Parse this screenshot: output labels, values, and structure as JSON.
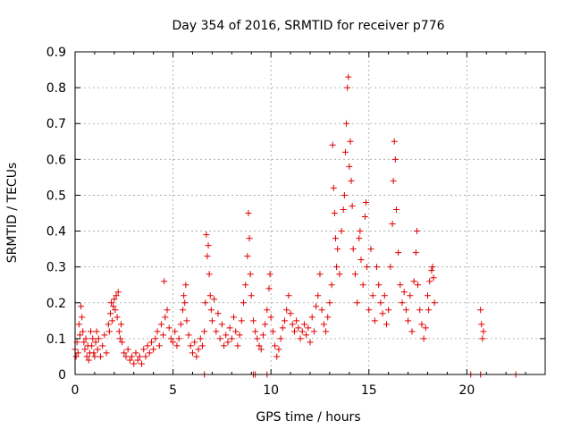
{
  "chart_data": {
    "type": "scatter",
    "title": "Day 354 of 2016, SRMTID for receiver p776",
    "xlabel": "GPS time / hours",
    "ylabel": "SRMTID / TECUs",
    "xlim": [
      0,
      24
    ],
    "ylim": [
      0,
      0.9
    ],
    "xticks": [
      0,
      5,
      10,
      15,
      20
    ],
    "yticks": [
      0,
      0.1,
      0.2,
      0.3,
      0.4,
      0.5,
      0.6,
      0.7,
      0.8,
      0.9
    ],
    "ytick_labels": [
      "0",
      "0.1",
      "0.2",
      "0.3",
      "0.4",
      "0.5",
      "0.6",
      "0.7",
      "0.8",
      "0.9"
    ],
    "grid": true,
    "marker": "+",
    "color": "#e00000",
    "series": [
      {
        "name": "p776",
        "points": [
          [
            0.0,
            0.07
          ],
          [
            0.05,
            0.05
          ],
          [
            0.1,
            0.09
          ],
          [
            0.15,
            0.06
          ],
          [
            0.2,
            0.14
          ],
          [
            0.25,
            0.11
          ],
          [
            0.3,
            0.19
          ],
          [
            0.35,
            0.16
          ],
          [
            0.4,
            0.12
          ],
          [
            0.45,
            0.09
          ],
          [
            0.5,
            0.07
          ],
          [
            0.55,
            0.1
          ],
          [
            0.6,
            0.05
          ],
          [
            0.65,
            0.08
          ],
          [
            0.7,
            0.04
          ],
          [
            0.75,
            0.06
          ],
          [
            0.8,
            0.12
          ],
          [
            0.85,
            0.08
          ],
          [
            0.9,
            0.1
          ],
          [
            0.95,
            0.06
          ],
          [
            1.0,
            0.05
          ],
          [
            1.05,
            0.09
          ],
          [
            1.1,
            0.12
          ],
          [
            1.15,
            0.07
          ],
          [
            1.2,
            0.1
          ],
          [
            1.3,
            0.05
          ],
          [
            1.4,
            0.08
          ],
          [
            1.5,
            0.11
          ],
          [
            1.6,
            0.06
          ],
          [
            1.7,
            0.14
          ],
          [
            1.75,
            0.12
          ],
          [
            1.8,
            0.17
          ],
          [
            1.85,
            0.2
          ],
          [
            1.9,
            0.15
          ],
          [
            1.95,
            0.19
          ],
          [
            2.0,
            0.21
          ],
          [
            2.05,
            0.18
          ],
          [
            2.1,
            0.22
          ],
          [
            2.15,
            0.16
          ],
          [
            2.2,
            0.23
          ],
          [
            2.25,
            0.12
          ],
          [
            2.3,
            0.1
          ],
          [
            2.35,
            0.14
          ],
          [
            2.4,
            0.09
          ],
          [
            2.5,
            0.06
          ],
          [
            2.6,
            0.05
          ],
          [
            2.7,
            0.07
          ],
          [
            2.8,
            0.04
          ],
          [
            2.9,
            0.05
          ],
          [
            3.0,
            0.03
          ],
          [
            3.1,
            0.06
          ],
          [
            3.2,
            0.04
          ],
          [
            3.3,
            0.05
          ],
          [
            3.4,
            0.03
          ],
          [
            3.5,
            0.07
          ],
          [
            3.6,
            0.05
          ],
          [
            3.7,
            0.08
          ],
          [
            3.8,
            0.06
          ],
          [
            3.9,
            0.09
          ],
          [
            4.0,
            0.07
          ],
          [
            4.1,
            0.1
          ],
          [
            4.2,
            0.12
          ],
          [
            4.3,
            0.08
          ],
          [
            4.4,
            0.14
          ],
          [
            4.5,
            0.11
          ],
          [
            4.55,
            0.26
          ],
          [
            4.6,
            0.16
          ],
          [
            4.7,
            0.18
          ],
          [
            4.8,
            0.13
          ],
          [
            4.9,
            0.1
          ],
          [
            5.0,
            0.09
          ],
          [
            5.1,
            0.12
          ],
          [
            5.2,
            0.08
          ],
          [
            5.3,
            0.1
          ],
          [
            5.4,
            0.14
          ],
          [
            5.5,
            0.18
          ],
          [
            5.55,
            0.22
          ],
          [
            5.6,
            0.2
          ],
          [
            5.65,
            0.25
          ],
          [
            5.7,
            0.15
          ],
          [
            5.8,
            0.11
          ],
          [
            5.9,
            0.08
          ],
          [
            6.0,
            0.06
          ],
          [
            6.1,
            0.09
          ],
          [
            6.2,
            0.05
          ],
          [
            6.3,
            0.07
          ],
          [
            6.4,
            0.1
          ],
          [
            6.5,
            0.08
          ],
          [
            6.6,
            0.12
          ],
          [
            6.65,
            0.2
          ],
          [
            6.7,
            0.39
          ],
          [
            6.75,
            0.33
          ],
          [
            6.8,
            0.36
          ],
          [
            6.85,
            0.28
          ],
          [
            6.9,
            0.22
          ],
          [
            6.95,
            0.18
          ],
          [
            7.0,
            0.15
          ],
          [
            7.1,
            0.21
          ],
          [
            7.2,
            0.12
          ],
          [
            7.3,
            0.17
          ],
          [
            7.4,
            0.1
          ],
          [
            7.5,
            0.14
          ],
          [
            7.6,
            0.08
          ],
          [
            7.7,
            0.11
          ],
          [
            7.8,
            0.09
          ],
          [
            7.9,
            0.13
          ],
          [
            8.0,
            0.1
          ],
          [
            8.1,
            0.16
          ],
          [
            8.2,
            0.12
          ],
          [
            8.3,
            0.08
          ],
          [
            8.4,
            0.11
          ],
          [
            8.5,
            0.15
          ],
          [
            8.6,
            0.2
          ],
          [
            8.7,
            0.25
          ],
          [
            8.8,
            0.33
          ],
          [
            8.85,
            0.45
          ],
          [
            8.9,
            0.38
          ],
          [
            8.95,
            0.28
          ],
          [
            9.0,
            0.22
          ],
          [
            9.1,
            0.15
          ],
          [
            9.2,
            0.12
          ],
          [
            9.3,
            0.1
          ],
          [
            9.4,
            0.08
          ],
          [
            9.5,
            0.07
          ],
          [
            9.6,
            0.11
          ],
          [
            9.7,
            0.14
          ],
          [
            9.8,
            0.18
          ],
          [
            9.9,
            0.24
          ],
          [
            9.95,
            0.28
          ],
          [
            10.0,
            0.16
          ],
          [
            10.1,
            0.12
          ],
          [
            10.2,
            0.08
          ],
          [
            10.3,
            0.05
          ],
          [
            10.4,
            0.07
          ],
          [
            10.5,
            0.1
          ],
          [
            10.6,
            0.13
          ],
          [
            10.7,
            0.15
          ],
          [
            10.8,
            0.18
          ],
          [
            10.9,
            0.22
          ],
          [
            11.0,
            0.17
          ],
          [
            11.1,
            0.14
          ],
          [
            11.2,
            0.12
          ],
          [
            11.3,
            0.15
          ],
          [
            11.4,
            0.13
          ],
          [
            11.5,
            0.1
          ],
          [
            11.6,
            0.12
          ],
          [
            11.7,
            0.14
          ],
          [
            11.8,
            0.11
          ],
          [
            11.9,
            0.13
          ],
          [
            12.0,
            0.09
          ],
          [
            12.1,
            0.16
          ],
          [
            12.2,
            0.12
          ],
          [
            12.3,
            0.19
          ],
          [
            12.4,
            0.22
          ],
          [
            12.5,
            0.28
          ],
          [
            12.6,
            0.18
          ],
          [
            12.7,
            0.14
          ],
          [
            12.8,
            0.12
          ],
          [
            12.9,
            0.16
          ],
          [
            13.0,
            0.2
          ],
          [
            13.1,
            0.25
          ],
          [
            13.15,
            0.64
          ],
          [
            13.2,
            0.52
          ],
          [
            13.25,
            0.45
          ],
          [
            13.3,
            0.38
          ],
          [
            13.35,
            0.3
          ],
          [
            13.4,
            0.35
          ],
          [
            13.5,
            0.28
          ],
          [
            13.6,
            0.4
          ],
          [
            13.7,
            0.46
          ],
          [
            13.75,
            0.5
          ],
          [
            13.8,
            0.62
          ],
          [
            13.85,
            0.7
          ],
          [
            13.9,
            0.8
          ],
          [
            13.95,
            0.83
          ],
          [
            14.0,
            0.58
          ],
          [
            14.05,
            0.65
          ],
          [
            14.1,
            0.54
          ],
          [
            14.15,
            0.47
          ],
          [
            14.2,
            0.35
          ],
          [
            14.3,
            0.28
          ],
          [
            14.4,
            0.2
          ],
          [
            14.5,
            0.38
          ],
          [
            14.55,
            0.4
          ],
          [
            14.6,
            0.32
          ],
          [
            14.7,
            0.25
          ],
          [
            14.8,
            0.44
          ],
          [
            14.85,
            0.48
          ],
          [
            14.9,
            0.3
          ],
          [
            15.0,
            0.18
          ],
          [
            15.1,
            0.35
          ],
          [
            15.2,
            0.22
          ],
          [
            15.3,
            0.15
          ],
          [
            15.4,
            0.3
          ],
          [
            15.5,
            0.25
          ],
          [
            15.6,
            0.2
          ],
          [
            15.7,
            0.17
          ],
          [
            15.8,
            0.22
          ],
          [
            15.9,
            0.14
          ],
          [
            16.0,
            0.18
          ],
          [
            16.1,
            0.3
          ],
          [
            16.2,
            0.42
          ],
          [
            16.25,
            0.54
          ],
          [
            16.3,
            0.65
          ],
          [
            16.35,
            0.6
          ],
          [
            16.4,
            0.46
          ],
          [
            16.5,
            0.34
          ],
          [
            16.6,
            0.25
          ],
          [
            16.7,
            0.2
          ],
          [
            16.8,
            0.23
          ],
          [
            16.9,
            0.18
          ],
          [
            17.0,
            0.15
          ],
          [
            17.1,
            0.22
          ],
          [
            17.2,
            0.12
          ],
          [
            17.3,
            0.26
          ],
          [
            17.4,
            0.34
          ],
          [
            17.45,
            0.4
          ],
          [
            17.5,
            0.25
          ],
          [
            17.6,
            0.18
          ],
          [
            17.7,
            0.14
          ],
          [
            17.8,
            0.1
          ],
          [
            17.9,
            0.13
          ],
          [
            18.0,
            0.22
          ],
          [
            18.05,
            0.18
          ],
          [
            18.1,
            0.26
          ],
          [
            18.2,
            0.29
          ],
          [
            18.25,
            0.3
          ],
          [
            18.3,
            0.27
          ],
          [
            18.35,
            0.2
          ],
          [
            20.7,
            0.18
          ],
          [
            20.75,
            0.14
          ],
          [
            20.8,
            0.1
          ],
          [
            20.85,
            0.12
          ],
          [
            6.6,
            0.0
          ],
          [
            9.1,
            0.0
          ],
          [
            9.2,
            0.0
          ],
          [
            9.8,
            0.0
          ],
          [
            20.2,
            0.0
          ],
          [
            20.7,
            0.0
          ],
          [
            22.5,
            0.0
          ]
        ]
      }
    ]
  }
}
